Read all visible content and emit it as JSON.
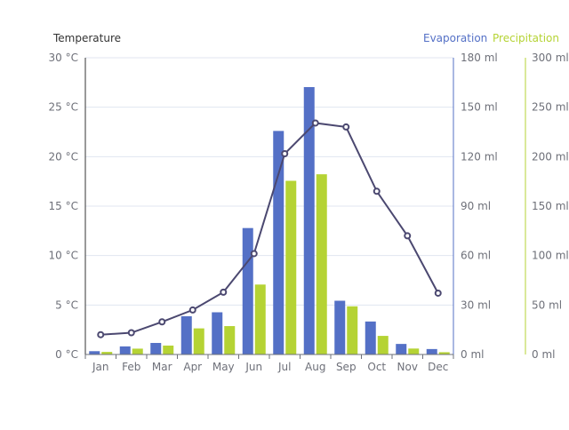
{
  "chart_data": {
    "type": "bar",
    "categories": [
      "Jan",
      "Feb",
      "Mar",
      "Apr",
      "May",
      "Jun",
      "Jul",
      "Aug",
      "Sep",
      "Oct",
      "Nov",
      "Dec"
    ],
    "series": [
      {
        "name": "Evaporation",
        "type": "bar",
        "axis": "evaporation",
        "color": "#5470c6",
        "values": [
          2.0,
          4.9,
          7.0,
          23.2,
          25.6,
          76.7,
          135.6,
          162.2,
          32.6,
          20.0,
          6.4,
          3.3
        ]
      },
      {
        "name": "Precipitation",
        "type": "bar",
        "axis": "precipitation",
        "color": "#b5d334",
        "values": [
          2.6,
          5.9,
          9.0,
          26.4,
          28.7,
          70.7,
          175.6,
          182.2,
          48.7,
          18.8,
          6.0,
          2.3
        ]
      },
      {
        "name": "Temperature",
        "type": "line",
        "axis": "temperature",
        "color": "#4b4870",
        "values": [
          2.0,
          2.2,
          3.3,
          4.5,
          6.3,
          10.2,
          20.3,
          23.4,
          23.0,
          16.5,
          12.0,
          6.2
        ]
      }
    ],
    "axes": {
      "temperature": {
        "name": "Temperature",
        "range": [
          0,
          30
        ],
        "ticks": [
          "0 °C",
          "5 °C",
          "10 °C",
          "15 °C",
          "20 °C",
          "25 °C",
          "30 °C"
        ],
        "color": "#333333"
      },
      "evaporation": {
        "range": [
          0,
          180
        ],
        "ticks": [
          "0 ml",
          "30 ml",
          "60 ml",
          "90 ml",
          "120 ml",
          "150 ml",
          "180 ml"
        ],
        "color": "#5470c6"
      },
      "precipitation": {
        "range": [
          0,
          300
        ],
        "ticks": [
          "0 ml",
          "50 ml",
          "100 ml",
          "150 ml",
          "200 ml",
          "250 ml",
          "300 ml"
        ],
        "color": "#b5d334"
      }
    },
    "legend": {
      "items": [
        "Evaporation",
        "Precipitation"
      ],
      "position": "top-right"
    },
    "grid": true
  }
}
